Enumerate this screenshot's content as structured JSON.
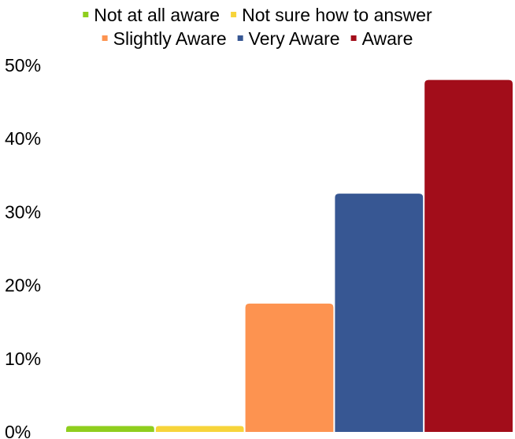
{
  "chart_data": {
    "type": "bar",
    "title": "",
    "xlabel": "",
    "ylabel": "",
    "ylim": [
      0,
      50
    ],
    "y_ticks": [
      "0%",
      "10%",
      "20%",
      "30%",
      "40%",
      "50%"
    ],
    "y_tick_values": [
      0,
      10,
      20,
      30,
      40,
      50
    ],
    "grid": false,
    "legend_position": "top",
    "series": [
      {
        "name": "Not at all aware",
        "value": 0.8,
        "color": "#8fce1e"
      },
      {
        "name": "Not sure how to answer",
        "value": 0.8,
        "color": "#f7d43a"
      },
      {
        "name": "Slightly Aware",
        "value": 17.5,
        "color": "#fd9350"
      },
      {
        "name": "Very Aware",
        "value": 32.5,
        "color": "#375793"
      },
      {
        "name": "Aware",
        "value": 48,
        "color": "#a20d1a"
      }
    ]
  }
}
